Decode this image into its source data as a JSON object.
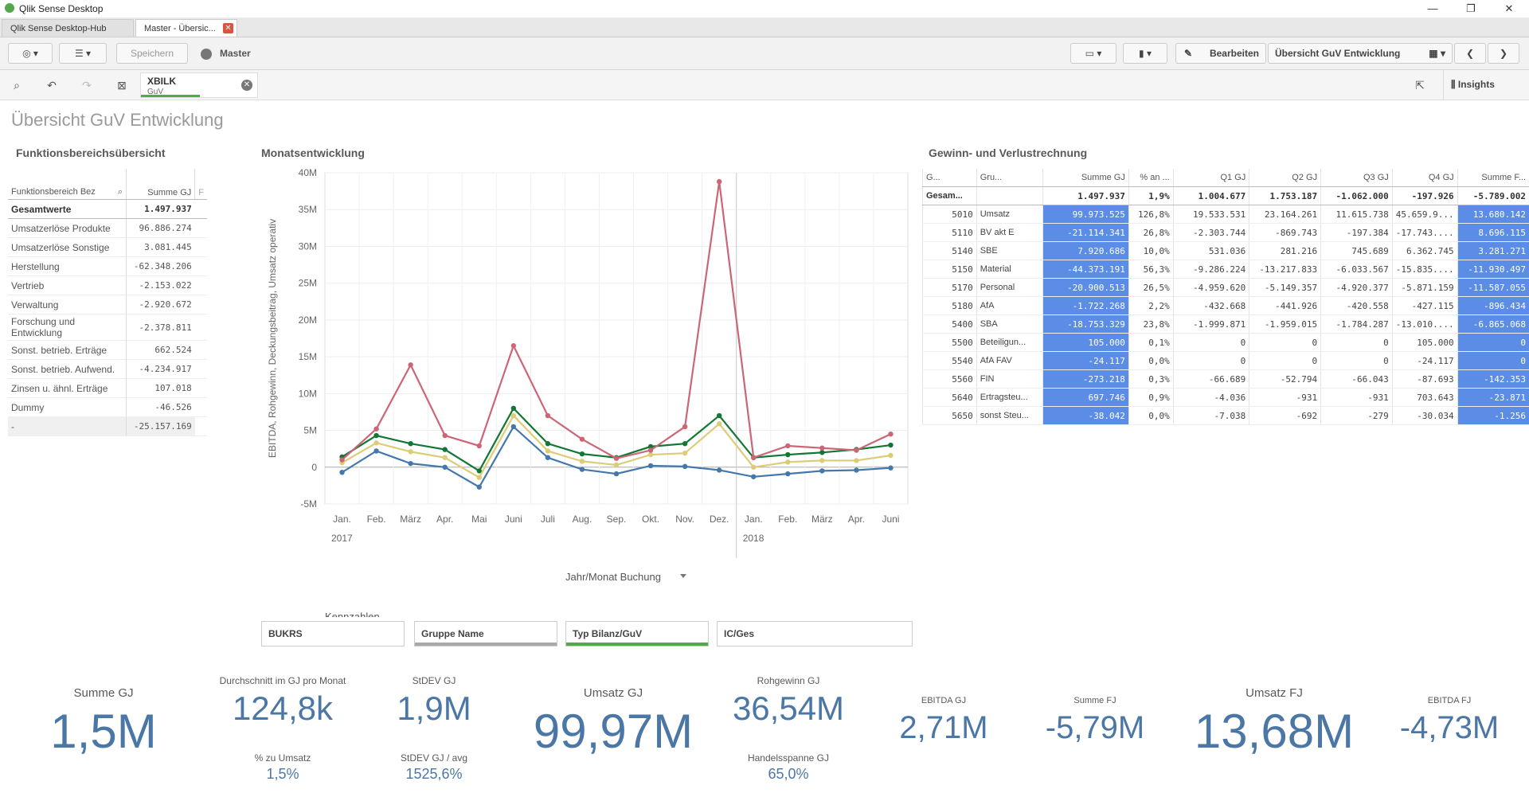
{
  "window": {
    "title": "Qlik Sense Desktop",
    "minimize": "—",
    "restore": "❐",
    "close": "✕"
  },
  "tabs": [
    {
      "label": "Qlik Sense Desktop-Hub"
    },
    {
      "label": "Master - Übersic...",
      "close": "✕"
    }
  ],
  "toolbar": {
    "save": "Speichern",
    "app_name": "Master",
    "edit": "Bearbeiten",
    "sheet_name": "Übersicht GuV Entwicklung",
    "insights": "Insights"
  },
  "selection": {
    "field": "XBILK",
    "value": "GuV"
  },
  "sheet": {
    "title": "Übersicht GuV Entwicklung"
  },
  "funktionsbereich": {
    "title": "Funktionsbereichsübersicht",
    "col1": "Funktionsbereich Bez",
    "col2": "Summe GJ",
    "col3": "F",
    "total_label": "Gesamtwerte",
    "total_value": "1.497.937",
    "rows": [
      {
        "label": "Umsatzerlöse Produkte",
        "value": "96.886.274"
      },
      {
        "label": "Umsatzerlöse Sonstige",
        "value": "3.081.445"
      },
      {
        "label": "Herstellung",
        "value": "-62.348.206"
      },
      {
        "label": "Vertrieb",
        "value": "-2.153.022"
      },
      {
        "label": "Verwaltung",
        "value": "-2.920.672"
      },
      {
        "label": "Forschung und Entwicklung",
        "value": "-2.378.811"
      },
      {
        "label": "Sonst. betrieb. Erträge",
        "value": "662.524"
      },
      {
        "label": "Sonst. betrieb. Aufwend.",
        "value": "-4.234.917"
      },
      {
        "label": "Zinsen u. ähnl. Erträge",
        "value": "107.018"
      },
      {
        "label": "Dummy",
        "value": "-46.526"
      },
      {
        "label": "-",
        "value": "-25.157.169"
      }
    ]
  },
  "chart_data": {
    "type": "line",
    "title": "Monatsentwicklung",
    "ylabel": "EBITDA, Rohgewinn, Deckungsbeitrag, Umsatz operativ",
    "xlabel": "Jahr/Monat Buchung",
    "legend_title": "Kennzahlen",
    "ylim": [
      -5000000,
      40000000
    ],
    "yticks": [
      "-5M",
      "0",
      "5M",
      "10M",
      "15M",
      "20M",
      "25M",
      "30M",
      "35M",
      "40M"
    ],
    "categories": [
      "Jan.",
      "Feb.",
      "März",
      "Apr.",
      "Mai",
      "Juni",
      "Juli",
      "Aug.",
      "Sep.",
      "Okt.",
      "Nov.",
      "Dez.",
      "Jan.",
      "Feb.",
      "März",
      "Apr.",
      "Juni"
    ],
    "years": [
      {
        "label": "2017"
      },
      {
        "label": "2018"
      }
    ],
    "series": [
      {
        "name": "EBITDA",
        "color": "#4477aa",
        "values": [
          -700000,
          2200000,
          500000,
          0,
          -2700000,
          5500000,
          1300000,
          -300000,
          -900000,
          200000,
          100000,
          -400000,
          -1300000,
          -900000,
          -500000,
          -400000,
          -100000
        ]
      },
      {
        "name": "Rohgewinn",
        "color": "#117733",
        "values": [
          1400000,
          4300000,
          3200000,
          2400000,
          -500000,
          8000000,
          3200000,
          1800000,
          1300000,
          2800000,
          3200000,
          7000000,
          1300000,
          1700000,
          2000000,
          2400000,
          3000000
        ]
      },
      {
        "name": "Deckungsbeitrag",
        "color": "#ddcc77",
        "values": [
          600000,
          3300000,
          2100000,
          1300000,
          -1400000,
          7000000,
          2200000,
          800000,
          300000,
          1700000,
          1900000,
          5900000,
          0,
          700000,
          900000,
          900000,
          1600000
        ]
      },
      {
        "name": "Umsatz operativ",
        "color": "#cc6677",
        "values": [
          1000000,
          5200000,
          13900000,
          4300000,
          2900000,
          16500000,
          7000000,
          3800000,
          1200000,
          2300000,
          5500000,
          38800000,
          1300000,
          2900000,
          2600000,
          2300000,
          4500000
        ]
      }
    ]
  },
  "guv": {
    "title": "Gewinn- und Verlustrechnung",
    "headers": [
      "G...",
      "Gru...",
      "Summe GJ",
      "% an ...",
      "Q1 GJ",
      "Q2 GJ",
      "Q3 GJ",
      "Q4 GJ",
      "Summe F..."
    ],
    "total": [
      "Gesam...",
      "",
      "1.497.937",
      "1,9%",
      "1.004.677",
      "1.753.187",
      "-1.062.000",
      "-197.926",
      "-5.789.002"
    ],
    "rows": [
      [
        "5010",
        "Umsatz",
        "99.973.525",
        "126,8%",
        "19.533.531",
        "23.164.261",
        "11.615.738",
        "45.659.9...",
        "13.680.142"
      ],
      [
        "5110",
        "BV akt E",
        "-21.114.341",
        "26,8%",
        "-2.303.744",
        "-869.743",
        "-197.384",
        "-17.743....",
        "8.696.115"
      ],
      [
        "5140",
        "SBE",
        "7.920.686",
        "10,0%",
        "531.036",
        "281.216",
        "745.689",
        "6.362.745",
        "3.281.271"
      ],
      [
        "5150",
        "Material",
        "-44.373.191",
        "56,3%",
        "-9.286.224",
        "-13.217.833",
        "-6.033.567",
        "-15.835....",
        "-11.930.497"
      ],
      [
        "5170",
        "Personal",
        "-20.900.513",
        "26,5%",
        "-4.959.620",
        "-5.149.357",
        "-4.920.377",
        "-5.871.159",
        "-11.587.055"
      ],
      [
        "5180",
        "AfA",
        "-1.722.268",
        "2,2%",
        "-432.668",
        "-441.926",
        "-420.558",
        "-427.115",
        "-896.434"
      ],
      [
        "5400",
        "SBA",
        "-18.753.329",
        "23,8%",
        "-1.999.871",
        "-1.959.015",
        "-1.784.287",
        "-13.010....",
        "-6.865.068"
      ],
      [
        "5500",
        "Beteiligun...",
        "105.000",
        "0,1%",
        "0",
        "0",
        "0",
        "105.000",
        "0"
      ],
      [
        "5540",
        "AfA FAV",
        "-24.117",
        "0,0%",
        "0",
        "0",
        "0",
        "-24.117",
        "0"
      ],
      [
        "5560",
        "FIN",
        "-273.218",
        "0,3%",
        "-66.689",
        "-52.794",
        "-66.043",
        "-87.693",
        "-142.353"
      ],
      [
        "5640",
        "Ertragsteu...",
        "697.746",
        "0,9%",
        "-4.036",
        "-931",
        "-931",
        "703.643",
        "-23.871"
      ],
      [
        "5650",
        "sonst Steu...",
        "-38.042",
        "0,0%",
        "-7.038",
        "-692",
        "-279",
        "-30.034",
        "-1.256"
      ]
    ]
  },
  "filters": [
    "BUKRS",
    "Gruppe Name",
    "Typ Bilanz/GuV",
    "IC/Ges"
  ],
  "kpis": {
    "summe_gj": {
      "label": "Summe GJ",
      "value": "1,5M"
    },
    "avg_month": {
      "label": "Durchschnitt im GJ pro Monat",
      "value": "124,8k"
    },
    "pct_umsatz": {
      "label": "% zu Umsatz",
      "value": "1,5%"
    },
    "stdev": {
      "label": "StDEV GJ",
      "value": "1,9M"
    },
    "stdev_avg": {
      "label": "StDEV GJ / avg",
      "value": "1525,6%"
    },
    "umsatz_gj": {
      "label": "Umsatz GJ",
      "value": "99,97M"
    },
    "rohgewinn": {
      "label": "Rohgewinn GJ",
      "value": "36,54M"
    },
    "handelsspanne": {
      "label": "Handelsspanne GJ",
      "value": "65,0%"
    },
    "ebitda_gj": {
      "label": "EBITDA GJ",
      "value": "2,71M"
    },
    "summe_fj": {
      "label": "Summe FJ",
      "value": "-5,79M"
    },
    "umsatz_fj": {
      "label": "Umsatz FJ",
      "value": "13,68M"
    },
    "ebitda_fj": {
      "label": "EBITDA FJ",
      "value": "-4,73M"
    }
  }
}
